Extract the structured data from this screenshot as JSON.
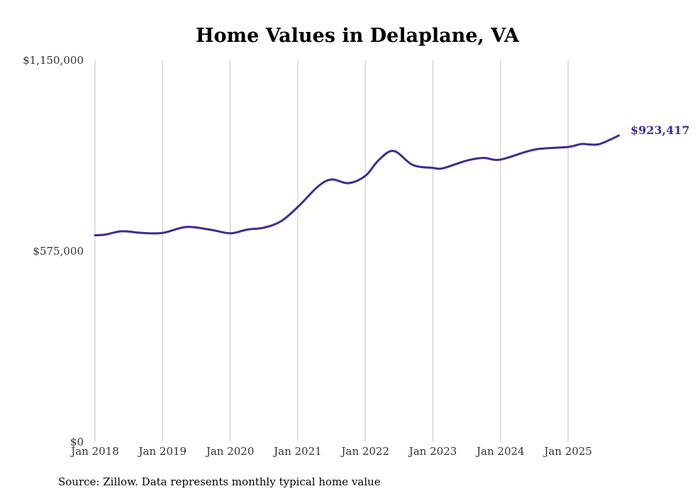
{
  "chart_data": {
    "type": "line",
    "title": "Home Values in Delaplane, VA",
    "xlabel": "",
    "ylabel": "",
    "ylim": [
      0,
      1150000
    ],
    "xlim": [
      2018,
      2025.75
    ],
    "yticks": [
      0,
      575000,
      1150000
    ],
    "ytick_labels": [
      "$0",
      "$575,000",
      "$1,150,000"
    ],
    "xticks": [
      2018,
      2019,
      2020,
      2021,
      2022,
      2023,
      2024,
      2025
    ],
    "xtick_labels": [
      "Jan 2018",
      "Jan 2019",
      "Jan 2020",
      "Jan 2021",
      "Jan 2022",
      "Jan 2023",
      "Jan 2024",
      "Jan 2025"
    ],
    "grid": "vertical",
    "series": [
      {
        "name": "Typical home value",
        "color": "#3a2f94",
        "x": [
          2018,
          2018.15,
          2018.4,
          2018.7,
          2019,
          2019.35,
          2019.7,
          2020,
          2020.25,
          2020.5,
          2020.75,
          2021,
          2021.3,
          2021.5,
          2021.75,
          2022,
          2022.2,
          2022.42,
          2022.7,
          2023,
          2023.15,
          2023.5,
          2023.75,
          2024,
          2024.5,
          2025,
          2025.2,
          2025.45,
          2025.75
        ],
        "y": [
          623000,
          625000,
          635000,
          630000,
          630000,
          648000,
          640000,
          629000,
          640000,
          646000,
          665000,
          708000,
          770000,
          791000,
          780000,
          802000,
          850000,
          877000,
          835000,
          826000,
          825000,
          848000,
          856000,
          851000,
          881000,
          889000,
          898000,
          897000,
          923417
        ]
      }
    ],
    "end_label": "$923,417"
  },
  "footer": {
    "source": "Source: Zillow. Data represents monthly typical home value"
  }
}
